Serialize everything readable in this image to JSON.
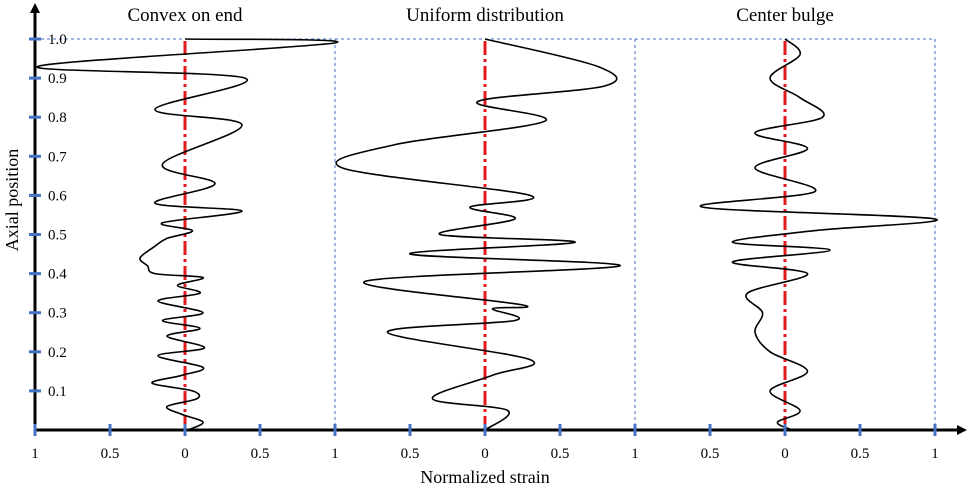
{
  "chart_data": {
    "type": "line",
    "ylabel": "Axial position",
    "xlabel": "Normalized strain",
    "ylim": [
      0,
      1.0
    ],
    "yticks": [
      "0.1",
      "0.2",
      "0.3",
      "0.4",
      "0.5",
      "0.6",
      "0.7",
      "0.8",
      "0.9",
      "1.0"
    ],
    "xtick_labels": [
      "1",
      "0.5",
      "0",
      "0.5",
      "1",
      "0.5",
      "0",
      "0.5",
      "1",
      "0.5",
      "0",
      "0.5",
      "1"
    ],
    "panel_xlim": [
      -1,
      1
    ],
    "colors": {
      "curve": "#000000",
      "centerline": "#e31a1c",
      "tick": "#4472c4",
      "border": "#4472c4"
    },
    "panels": [
      {
        "title": "Convex on end",
        "points": [
          [
            0.02,
            0.0
          ],
          [
            0.12,
            0.02
          ],
          [
            -0.02,
            0.04
          ],
          [
            -0.12,
            0.06
          ],
          [
            0.08,
            0.08
          ],
          [
            0.05,
            0.1
          ],
          [
            -0.22,
            0.12
          ],
          [
            -0.02,
            0.14
          ],
          [
            0.12,
            0.16
          ],
          [
            -0.18,
            0.19
          ],
          [
            0.13,
            0.21
          ],
          [
            -0.12,
            0.24
          ],
          [
            0.1,
            0.26
          ],
          [
            -0.15,
            0.28
          ],
          [
            0.12,
            0.3
          ],
          [
            -0.18,
            0.33
          ],
          [
            0.1,
            0.35
          ],
          [
            -0.05,
            0.37
          ],
          [
            0.12,
            0.39
          ],
          [
            -0.2,
            0.4
          ],
          [
            -0.25,
            0.42
          ],
          [
            -0.3,
            0.44
          ],
          [
            -0.2,
            0.47
          ],
          [
            -0.12,
            0.49
          ],
          [
            0.05,
            0.51
          ],
          [
            -0.15,
            0.53
          ],
          [
            0.38,
            0.56
          ],
          [
            -0.2,
            0.58
          ],
          [
            0.2,
            0.63
          ],
          [
            -0.15,
            0.68
          ],
          [
            0.38,
            0.78
          ],
          [
            -0.2,
            0.82
          ],
          [
            0.4,
            0.9
          ],
          [
            -0.98,
            0.93
          ],
          [
            1.0,
            0.99
          ],
          [
            0.0,
            1.0
          ]
        ]
      },
      {
        "title": "Uniform distribution",
        "points": [
          [
            0.0,
            0.0
          ],
          [
            0.15,
            0.05
          ],
          [
            -0.35,
            0.08
          ],
          [
            0.05,
            0.14
          ],
          [
            0.3,
            0.18
          ],
          [
            -0.65,
            0.25
          ],
          [
            0.2,
            0.28
          ],
          [
            0.05,
            0.31
          ],
          [
            0.25,
            0.32
          ],
          [
            -0.8,
            0.38
          ],
          [
            0.9,
            0.42
          ],
          [
            -0.5,
            0.45
          ],
          [
            0.6,
            0.48
          ],
          [
            -0.3,
            0.5
          ],
          [
            0.2,
            0.54
          ],
          [
            -0.1,
            0.57
          ],
          [
            0.3,
            0.6
          ],
          [
            -0.95,
            0.67
          ],
          [
            -0.6,
            0.73
          ],
          [
            0.4,
            0.79
          ],
          [
            -0.05,
            0.84
          ],
          [
            0.8,
            0.88
          ],
          [
            0.75,
            0.93
          ],
          [
            0.0,
            1.0
          ]
        ]
      },
      {
        "title": "Center bulge",
        "points": [
          [
            0.05,
            0.0
          ],
          [
            -0.05,
            0.02
          ],
          [
            0.1,
            0.05
          ],
          [
            -0.1,
            0.1
          ],
          [
            0.15,
            0.15
          ],
          [
            -0.1,
            0.2
          ],
          [
            -0.2,
            0.25
          ],
          [
            -0.15,
            0.3
          ],
          [
            -0.25,
            0.35
          ],
          [
            0.15,
            0.4
          ],
          [
            -0.35,
            0.43
          ],
          [
            0.3,
            0.46
          ],
          [
            -0.35,
            0.48
          ],
          [
            0.2,
            0.51
          ],
          [
            1.0,
            0.54
          ],
          [
            -0.55,
            0.57
          ],
          [
            0.2,
            0.61
          ],
          [
            -0.2,
            0.67
          ],
          [
            0.15,
            0.72
          ],
          [
            -0.2,
            0.76
          ],
          [
            0.25,
            0.8
          ],
          [
            0.1,
            0.85
          ],
          [
            -0.1,
            0.9
          ],
          [
            0.1,
            0.96
          ],
          [
            0.0,
            1.0
          ]
        ]
      }
    ]
  }
}
